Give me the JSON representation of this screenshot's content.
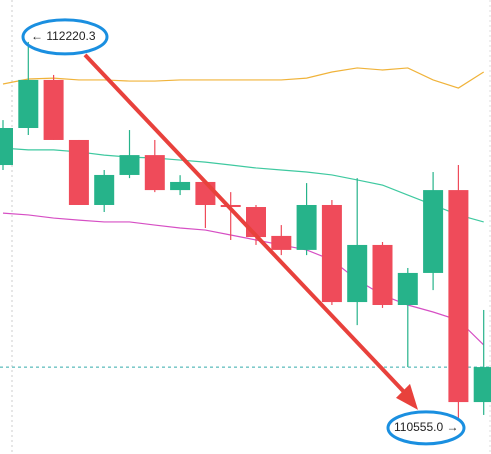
{
  "chart_data": {
    "type": "candlestick",
    "ylim": [
      110395,
      112406
    ],
    "up_color": "#26b38a",
    "down_color": "#ef4b5a",
    "open": [
      111675,
      111839,
      112052,
      111786,
      111498,
      111631,
      111719,
      111564,
      111600,
      111498,
      111489,
      111361,
      111299,
      111498,
      111068,
      111321,
      111055,
      111197,
      111564,
      110625
    ],
    "close": [
      111839,
      112052,
      111786,
      111498,
      111631,
      111719,
      111564,
      111600,
      111498,
      111489,
      111356,
      111299,
      111498,
      111068,
      111321,
      111055,
      111197,
      111564,
      110625,
      110780
    ],
    "high": [
      111874,
      112220.3,
      112074,
      111786,
      111653,
      111830,
      111786,
      111630,
      111609,
      111555,
      111498,
      111409,
      111595,
      111520,
      111617,
      111334,
      111219,
      111644,
      111675,
      111033
    ],
    "low": [
      111653,
      111808,
      111786,
      111498,
      111467,
      111617,
      111555,
      111542,
      111396,
      111343,
      111321,
      111276,
      111276,
      111055,
      110966,
      111042,
      110780,
      111121,
      110555.0,
      110568
    ],
    "lines": [
      {
        "color": "#f0b33a",
        "values": [
          112034,
          112056,
          112060,
          112052,
          112052,
          112047,
          112047,
          112052,
          112052,
          112052,
          112052,
          112052,
          112060,
          112087,
          112105,
          112096,
          112105,
          112052,
          112016,
          112087
        ]
      },
      {
        "color": "#3fc9a0",
        "values": [
          111750,
          111742,
          111742,
          111733,
          111719,
          111710,
          111706,
          111697,
          111688,
          111675,
          111662,
          111653,
          111644,
          111631,
          111609,
          111586,
          111542,
          111498,
          111454,
          111423
        ]
      },
      {
        "color": "#d64fc4",
        "values": [
          111462,
          111454,
          111440,
          111431,
          111423,
          111423,
          111409,
          111396,
          111387,
          111365,
          111343,
          111321,
          111299,
          111254,
          111166,
          111099,
          111055,
          111024,
          110988,
          110878
        ]
      }
    ],
    "price_line": 110780,
    "annotations": [
      {
        "text": "← 112220.3",
        "value": 112220.3
      },
      {
        "text": "110555.0 →",
        "value": 110555.0
      }
    ]
  }
}
